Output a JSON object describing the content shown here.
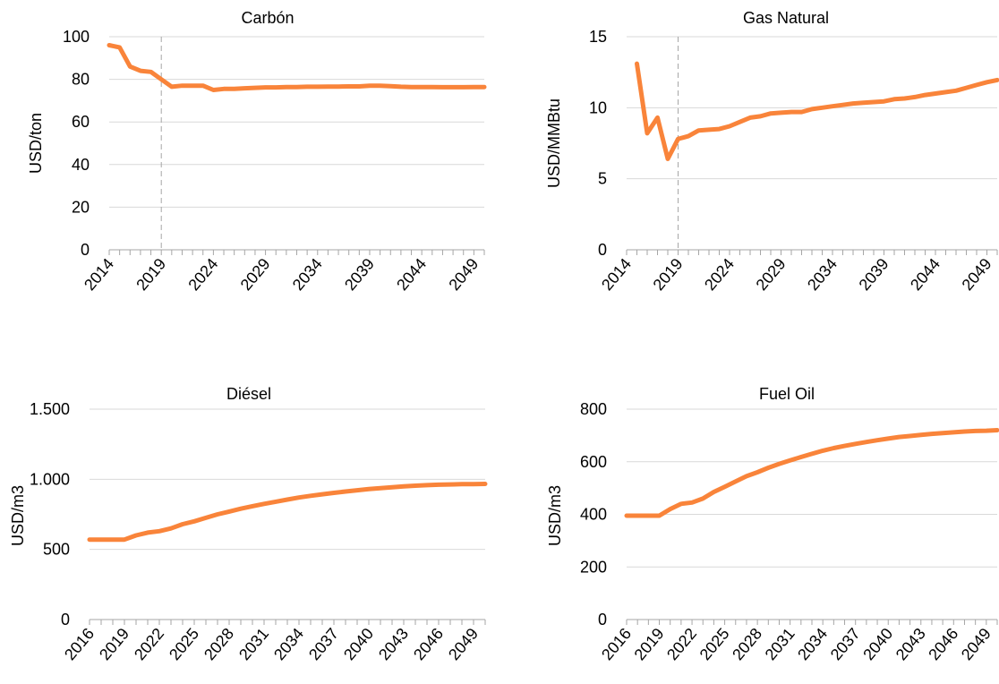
{
  "colors": {
    "series": "#F9843A",
    "grid": "#D9D9D9",
    "axis": "#A6A6A6"
  },
  "chart_data": [
    {
      "type": "line",
      "title": "Carbón",
      "ylabel": "USD/ton",
      "xlabel": "",
      "ylim": [
        0,
        100
      ],
      "yticks": [
        0,
        20,
        40,
        60,
        80,
        100
      ],
      "ytick_labels": [
        "0",
        "20",
        "40",
        "60",
        "80",
        "100"
      ],
      "x": [
        2014,
        2015,
        2016,
        2017,
        2018,
        2019,
        2020,
        2021,
        2022,
        2023,
        2024,
        2025,
        2026,
        2027,
        2028,
        2029,
        2030,
        2031,
        2032,
        2033,
        2034,
        2035,
        2036,
        2037,
        2038,
        2039,
        2040,
        2041,
        2042,
        2043,
        2044,
        2045,
        2046,
        2047,
        2048,
        2049,
        2050
      ],
      "xlim": [
        2014,
        2050
      ],
      "xtick_labels": [
        "2014",
        "2019",
        "2024",
        "2029",
        "2034",
        "2039",
        "2044",
        "2049"
      ],
      "reference_x": 2019,
      "grid": true,
      "series": [
        {
          "values": [
            96,
            95,
            86,
            84,
            83.5,
            80,
            76.5,
            77,
            77,
            77,
            75,
            75.5,
            75.5,
            75.8,
            76,
            76.2,
            76.2,
            76.4,
            76.4,
            76.5,
            76.5,
            76.6,
            76.6,
            76.7,
            76.7,
            77,
            77,
            76.8,
            76.5,
            76.4,
            76.4,
            76.4,
            76.3,
            76.3,
            76.3,
            76.4,
            76.4
          ]
        }
      ]
    },
    {
      "type": "line",
      "title": "Gas Natural",
      "ylabel": "USD/MMBtu",
      "xlabel": "",
      "ylim": [
        0,
        15
      ],
      "yticks": [
        0,
        5,
        10,
        15
      ],
      "ytick_labels": [
        "0",
        "5",
        "10",
        "15"
      ],
      "x": [
        2015,
        2016,
        2017,
        2018,
        2019,
        2020,
        2021,
        2022,
        2023,
        2024,
        2025,
        2026,
        2027,
        2028,
        2029,
        2030,
        2031,
        2032,
        2033,
        2034,
        2035,
        2036,
        2037,
        2038,
        2039,
        2040,
        2041,
        2042,
        2043,
        2044,
        2045,
        2046,
        2047,
        2048,
        2049,
        2050
      ],
      "xlim": [
        2014,
        2050
      ],
      "xtick_labels": [
        "2014",
        "2019",
        "2024",
        "2029",
        "2034",
        "2039",
        "2044",
        "2049"
      ],
      "reference_x": 2019,
      "grid": true,
      "series": [
        {
          "values": [
            13.1,
            8.2,
            9.3,
            6.4,
            7.8,
            8.0,
            8.4,
            8.45,
            8.5,
            8.7,
            9.0,
            9.3,
            9.4,
            9.6,
            9.65,
            9.7,
            9.7,
            9.9,
            10.0,
            10.1,
            10.2,
            10.3,
            10.35,
            10.4,
            10.45,
            10.6,
            10.65,
            10.75,
            10.9,
            11.0,
            11.1,
            11.2,
            11.4,
            11.6,
            11.8,
            11.95
          ]
        }
      ]
    },
    {
      "type": "line",
      "title": "Diésel",
      "ylabel": "USD/m3",
      "xlabel": "",
      "ylim": [
        0,
        1500
      ],
      "yticks": [
        0,
        500,
        1000,
        1500
      ],
      "ytick_labels": [
        "0",
        "500",
        "1.000",
        "1.500"
      ],
      "x": [
        2016,
        2017,
        2018,
        2019,
        2020,
        2021,
        2022,
        2023,
        2024,
        2025,
        2026,
        2027,
        2028,
        2029,
        2030,
        2031,
        2032,
        2033,
        2034,
        2035,
        2036,
        2037,
        2038,
        2039,
        2040,
        2041,
        2042,
        2043,
        2044,
        2045,
        2046,
        2047,
        2048,
        2049,
        2050
      ],
      "xlim": [
        2016,
        2050
      ],
      "xtick_labels": [
        "2016",
        "2019",
        "2022",
        "2025",
        "2028",
        "2031",
        "2034",
        "2037",
        "2040",
        "2043",
        "2046",
        "2049"
      ],
      "grid": true,
      "series": [
        {
          "values": [
            570,
            570,
            570,
            570,
            600,
            620,
            630,
            650,
            680,
            700,
            725,
            750,
            770,
            790,
            808,
            825,
            840,
            855,
            870,
            882,
            893,
            903,
            913,
            922,
            930,
            937,
            943,
            949,
            954,
            958,
            961,
            963,
            965,
            966,
            967
          ]
        }
      ]
    },
    {
      "type": "line",
      "title": "Fuel Oil",
      "ylabel": "USD/m3",
      "xlabel": "",
      "ylim": [
        0,
        800
      ],
      "yticks": [
        0,
        200,
        400,
        600,
        800
      ],
      "ytick_labels": [
        "0",
        "200",
        "400",
        "600",
        "800"
      ],
      "x": [
        2016,
        2017,
        2018,
        2019,
        2020,
        2021,
        2022,
        2023,
        2024,
        2025,
        2026,
        2027,
        2028,
        2029,
        2030,
        2031,
        2032,
        2033,
        2034,
        2035,
        2036,
        2037,
        2038,
        2039,
        2040,
        2041,
        2042,
        2043,
        2044,
        2045,
        2046,
        2047,
        2048,
        2049,
        2050
      ],
      "xlim": [
        2016,
        2050
      ],
      "xtick_labels": [
        "2016",
        "2019",
        "2022",
        "2025",
        "2028",
        "2031",
        "2034",
        "2037",
        "2040",
        "2043",
        "2046",
        "2049"
      ],
      "grid": true,
      "series": [
        {
          "values": [
            395,
            395,
            395,
            395,
            420,
            440,
            445,
            460,
            485,
            505,
            525,
            545,
            560,
            577,
            592,
            605,
            618,
            630,
            642,
            652,
            660,
            668,
            675,
            682,
            688,
            694,
            698,
            702,
            706,
            709,
            712,
            715,
            717,
            718,
            720
          ]
        }
      ]
    }
  ]
}
